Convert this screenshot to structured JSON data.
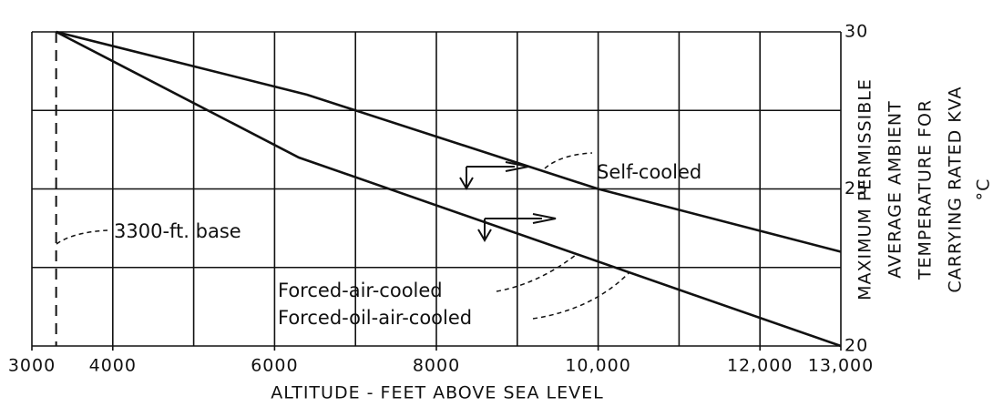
{
  "chart_data": {
    "type": "line",
    "x_label": "ALTITUDE - FEET ABOVE SEA LEVEL",
    "y_label_lines": [
      "MAXIMUM PERMISSIBLE",
      "AVERAGE AMBIENT",
      "TEMPERATURE FOR",
      "CARRYING RATED KVA",
      "°C"
    ],
    "xlim": [
      3000,
      13000
    ],
    "ylim": [
      20,
      30
    ],
    "xticks": [
      3000,
      4000,
      6000,
      {
        "value": 8000,
        "label": "8000"
      },
      {
        "value": 10000,
        "label": "10,000"
      },
      {
        "value": 12000,
        "label": "12,000"
      },
      {
        "value": 13000,
        "label": "13,000"
      }
    ],
    "xgrid": [
      3000,
      4000,
      5000,
      6000,
      7000,
      8000,
      9000,
      10000,
      11000,
      12000,
      13000
    ],
    "yticks": [
      20,
      25,
      30
    ],
    "ygrid": [
      20,
      22.5,
      25,
      27.5,
      30
    ],
    "y_axis_side": "right",
    "base_line": {
      "x": 3300,
      "label": "3300-ft. base"
    },
    "series": [
      {
        "name": "Self-cooled",
        "color": "#111111",
        "x": [
          3300,
          6400,
          10000,
          13000
        ],
        "values": [
          30,
          28,
          25,
          23
        ]
      },
      {
        "labels": [
          "Forced-air-cooled",
          "Forced-oil-air-cooled"
        ],
        "color": "#111111",
        "x": [
          3300,
          6300,
          13000
        ],
        "values": [
          30,
          26,
          20
        ]
      }
    ]
  }
}
